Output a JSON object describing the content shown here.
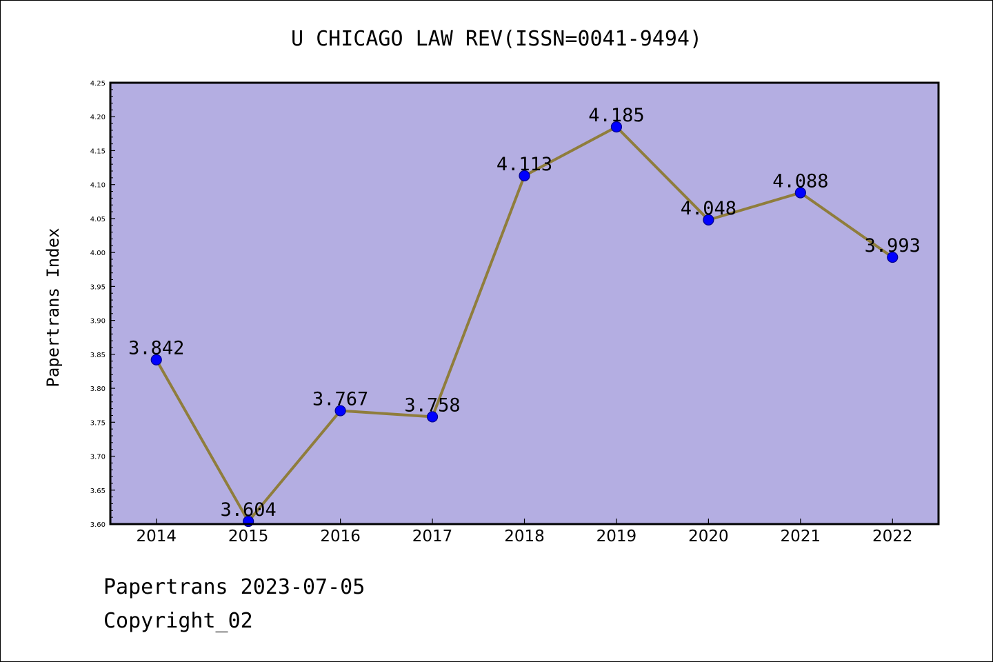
{
  "chart_data": {
    "type": "line",
    "title": "U CHICAGO LAW REV(ISSN=0041-9494)",
    "xlabel": "",
    "ylabel": "Papertrans Index",
    "categories": [
      "2014",
      "2015",
      "2016",
      "2017",
      "2018",
      "2019",
      "2020",
      "2021",
      "2022"
    ],
    "series": [
      {
        "values": [
          3.842,
          3.604,
          3.767,
          3.758,
          4.113,
          4.185,
          4.048,
          4.088,
          3.993
        ]
      }
    ],
    "data_labels": [
      "3.842",
      "3.604",
      "3.767",
      "3.758",
      "4.113",
      "4.185",
      "4.048",
      "4.088",
      "3.993"
    ],
    "ylim": [
      3.6,
      4.25
    ],
    "yticks": [
      "3.60",
      "3.65",
      "3.70",
      "3.75",
      "3.80",
      "3.85",
      "3.90",
      "3.95",
      "4.00",
      "4.05",
      "4.10",
      "4.15",
      "4.20",
      "4.25"
    ],
    "grid": false,
    "colors": {
      "plot_background": "#b4aee2",
      "line": "#8f7d3c",
      "marker_fill": "#0000ff",
      "marker_edge": "#00008b"
    }
  },
  "footer": {
    "date_text": "Papertrans 2023-07-05",
    "copyright_text": "Copyright_02"
  }
}
